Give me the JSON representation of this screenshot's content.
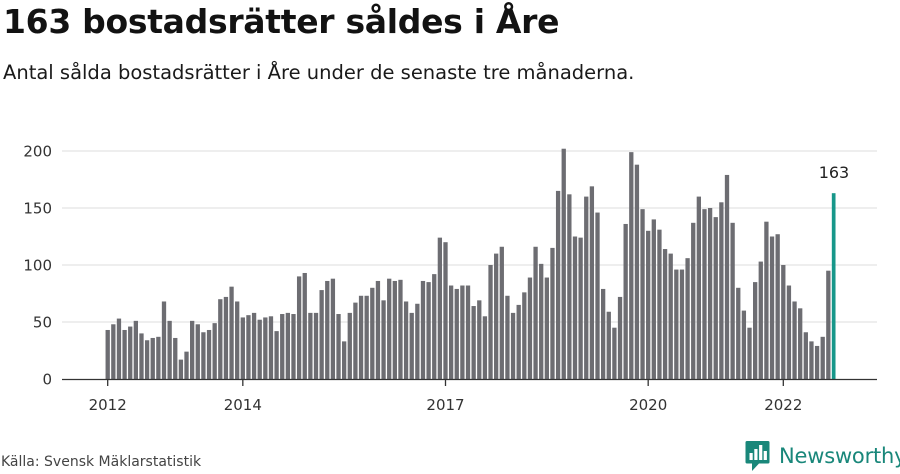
{
  "header": {
    "title": "163 bostadsrätter såldes i Åre",
    "subtitle": "Antal sålda bostadsrätter i Åre under de senaste tre månaderna."
  },
  "footer": {
    "source": "Källa: Svensk Mäklarstatistik",
    "brand": "Newsworthy"
  },
  "colors": {
    "bar": "#6d6d72",
    "highlight": "#17978a",
    "grid": "#dcdcdc",
    "axis": "#333333",
    "brand": "#19877a"
  },
  "chart_data": {
    "type": "bar",
    "title": "163 bostadsrätter såldes i Åre",
    "subtitle": "Antal sålda bostadsrätter i Åre under de senaste tre månaderna.",
    "xlabel": "",
    "ylabel": "",
    "start": "2012-01",
    "period": "month",
    "ylim": [
      0,
      200
    ],
    "yticks": [
      0,
      50,
      100,
      150,
      200
    ],
    "xticks": [
      {
        "label": "2012",
        "month": "2012-01"
      },
      {
        "label": "2014",
        "month": "2014-01"
      },
      {
        "label": "2017",
        "month": "2017-01"
      },
      {
        "label": "2020",
        "month": "2020-01"
      },
      {
        "label": "2022",
        "month": "2022-01"
      }
    ],
    "grid": true,
    "values": [
      43,
      48,
      53,
      43,
      46,
      51,
      40,
      34,
      36,
      37,
      68,
      51,
      36,
      17,
      24,
      51,
      48,
      41,
      43,
      49,
      70,
      72,
      81,
      68,
      54,
      56,
      58,
      52,
      54,
      55,
      42,
      57,
      58,
      57,
      90,
      93,
      58,
      58,
      78,
      86,
      88,
      57,
      33,
      58,
      67,
      73,
      73,
      80,
      86,
      69,
      88,
      86,
      87,
      68,
      58,
      66,
      86,
      85,
      92,
      124,
      120,
      82,
      79,
      82,
      82,
      64,
      69,
      55,
      100,
      110,
      116,
      73,
      58,
      65,
      76,
      89,
      116,
      101,
      89,
      115,
      165,
      202,
      162,
      125,
      124,
      160,
      169,
      146,
      79,
      59,
      45,
      72,
      136,
      199,
      188,
      149,
      130,
      140,
      131,
      114,
      110,
      96,
      96,
      106,
      137,
      160,
      149,
      150,
      142,
      155,
      179,
      137,
      80,
      60,
      45,
      85,
      103,
      138,
      125,
      127,
      100,
      82,
      68,
      62,
      41,
      33,
      29,
      37,
      95,
      163
    ],
    "highlight": {
      "month": "2022-10",
      "value": 163,
      "label": "163"
    }
  }
}
